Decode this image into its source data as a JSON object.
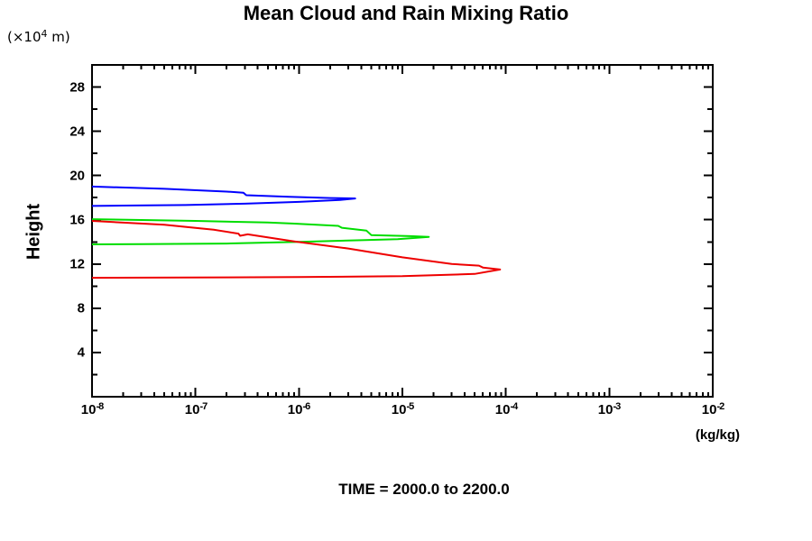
{
  "window": {
    "background": "#ffffff"
  },
  "chart_data": {
    "type": "line",
    "title": "Mean Cloud and Rain Mixing Ratio",
    "ylabel": "Height",
    "ylabel_unit": {
      "prefix": "(×10",
      "exponent": "4",
      "suffix": " m)"
    },
    "xlabel_unit": "(kg/kg)",
    "caption": "TIME = 2000.0 to 2200.0",
    "x_scale": "log",
    "xlim": [
      1e-08,
      0.01
    ],
    "x_tick_exponents": [
      -8,
      -7,
      -6,
      -5,
      -4,
      -3,
      -2
    ],
    "ylim": [
      0,
      30
    ],
    "y_major_ticks": [
      4,
      8,
      12,
      16,
      20,
      24,
      28
    ],
    "y_minor_ticks": [
      2,
      6,
      10,
      14,
      18,
      22,
      26
    ],
    "grid": "off",
    "legend": "none",
    "axis_color": "#000000",
    "series": [
      {
        "name": "blue-profile",
        "color": "#0000ff",
        "points": [
          [
            1e-08,
            19.0
          ],
          [
            5e-08,
            18.8
          ],
          [
            2e-07,
            18.55
          ],
          [
            2.9e-07,
            18.45
          ],
          [
            3.1e-07,
            18.22
          ],
          [
            8e-07,
            18.08
          ],
          [
            2e-06,
            17.97
          ],
          [
            3.5e-06,
            17.93
          ],
          [
            2.5e-06,
            17.8
          ],
          [
            1e-06,
            17.62
          ],
          [
            3e-07,
            17.45
          ],
          [
            8e-08,
            17.33
          ],
          [
            2e-08,
            17.28
          ],
          [
            1e-08,
            17.25
          ]
        ]
      },
      {
        "name": "green-profile",
        "color": "#00dd00",
        "points": [
          [
            1e-08,
            16.05
          ],
          [
            1e-07,
            15.9
          ],
          [
            5e-07,
            15.75
          ],
          [
            9e-07,
            15.65
          ],
          [
            2.4e-06,
            15.45
          ],
          [
            2.6e-06,
            15.28
          ],
          [
            4.5e-06,
            15.02
          ],
          [
            5e-06,
            14.62
          ],
          [
            1.2e-05,
            14.52
          ],
          [
            1.8e-05,
            14.45
          ],
          [
            9e-06,
            14.25
          ],
          [
            4e-06,
            14.15
          ],
          [
            1e-06,
            14.0
          ],
          [
            2e-07,
            13.85
          ],
          [
            3e-08,
            13.8
          ],
          [
            1e-08,
            13.78
          ]
        ]
      },
      {
        "name": "red-profile",
        "color": "#ee0000",
        "points": [
          [
            1e-08,
            15.9
          ],
          [
            5e-08,
            15.55
          ],
          [
            1.5e-07,
            15.1
          ],
          [
            2.6e-07,
            14.75
          ],
          [
            2.7e-07,
            14.55
          ],
          [
            3.2e-07,
            14.68
          ],
          [
            9e-07,
            14.05
          ],
          [
            3e-06,
            13.4
          ],
          [
            1e-05,
            12.6
          ],
          [
            3e-05,
            12.0
          ],
          [
            5.5e-05,
            11.85
          ],
          [
            6e-05,
            11.68
          ],
          [
            8.8e-05,
            11.5
          ],
          [
            5e-05,
            11.1
          ],
          [
            1e-05,
            10.9
          ],
          [
            1e-06,
            10.82
          ],
          [
            1e-08,
            10.75
          ]
        ]
      }
    ]
  }
}
